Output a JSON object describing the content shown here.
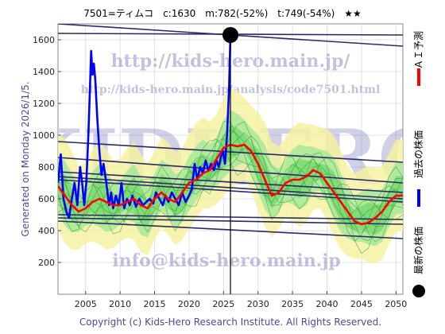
{
  "header": {
    "title": "7501=ティムコ　c:1630　m:782(-52%)　t:749(-54%)　★★"
  },
  "side_text": "Generated on Monday 2026/1/5.",
  "footer": "Copyright (c) Kids-Hero Research Institute. All Rights Reserved.",
  "watermarks": {
    "url": "http://kids-hero.main.jp/",
    "analysis_url": "http://kids-hero.main.jp/analysis/code7501.html",
    "big": "KIDHERO",
    "email": "info@kids-hero.main.jp"
  },
  "legend": [
    {
      "label": "ＡＩ予測",
      "color": "#ff0000",
      "kind": "line"
    },
    {
      "label": "過去の株価",
      "color": "#0000ff",
      "kind": "line"
    },
    {
      "label": "最新の株価",
      "color": "#000000",
      "kind": "dot"
    }
  ],
  "chart_data": {
    "type": "line",
    "title": "7501=ティムコ　c:1630　m:782(-52%)　t:749(-54%)　★★",
    "xlim": [
      2001,
      2051
    ],
    "ylim": [
      0,
      1700
    ],
    "xticks": [
      2005,
      2010,
      2015,
      2020,
      2025,
      2030,
      2035,
      2040,
      2045,
      2050
    ],
    "yticks": [
      200,
      400,
      600,
      800,
      1000,
      1200,
      1400,
      1600
    ],
    "grid": true,
    "latest": {
      "x": 2026.0,
      "y": 1630
    },
    "series": [
      {
        "name": "過去の株価",
        "color": "#0000ff",
        "points": [
          [
            2001.0,
            700
          ],
          [
            2001.4,
            880
          ],
          [
            2001.8,
            600
          ],
          [
            2002.2,
            520
          ],
          [
            2002.6,
            480
          ],
          [
            2003.0,
            600
          ],
          [
            2003.4,
            700
          ],
          [
            2003.8,
            560
          ],
          [
            2004.2,
            800
          ],
          [
            2004.5,
            700
          ],
          [
            2004.8,
            560
          ],
          [
            2005.1,
            700
          ],
          [
            2005.4,
            1000
          ],
          [
            2005.6,
            1250
          ],
          [
            2005.8,
            1530
          ],
          [
            2006.0,
            1380
          ],
          [
            2006.2,
            1450
          ],
          [
            2006.4,
            1350
          ],
          [
            2006.7,
            1100
          ],
          [
            2007.0,
            900
          ],
          [
            2007.3,
            750
          ],
          [
            2007.6,
            820
          ],
          [
            2008.0,
            700
          ],
          [
            2008.4,
            560
          ],
          [
            2008.7,
            640
          ],
          [
            2009.0,
            540
          ],
          [
            2009.4,
            620
          ],
          [
            2009.8,
            560
          ],
          [
            2010.2,
            700
          ],
          [
            2010.6,
            540
          ],
          [
            2011.0,
            600
          ],
          [
            2011.4,
            560
          ],
          [
            2011.8,
            620
          ],
          [
            2012.3,
            550
          ],
          [
            2012.8,
            600
          ],
          [
            2013.3,
            560
          ],
          [
            2013.8,
            580
          ],
          [
            2014.3,
            600
          ],
          [
            2014.8,
            570
          ],
          [
            2015.2,
            640
          ],
          [
            2015.7,
            600
          ],
          [
            2016.2,
            560
          ],
          [
            2016.6,
            620
          ],
          [
            2017.0,
            580
          ],
          [
            2017.5,
            640
          ],
          [
            2018.0,
            600
          ],
          [
            2018.5,
            560
          ],
          [
            2019.0,
            640
          ],
          [
            2019.5,
            580
          ],
          [
            2020.0,
            620
          ],
          [
            2020.4,
            660
          ],
          [
            2020.8,
            820
          ],
          [
            2021.2,
            720
          ],
          [
            2021.6,
            800
          ],
          [
            2022.0,
            760
          ],
          [
            2022.4,
            840
          ],
          [
            2022.8,
            780
          ],
          [
            2023.2,
            820
          ],
          [
            2023.6,
            780
          ],
          [
            2024.0,
            840
          ],
          [
            2024.3,
            800
          ],
          [
            2024.6,
            860
          ],
          [
            2024.9,
            900
          ],
          [
            2025.2,
            820
          ],
          [
            2025.5,
            1000
          ],
          [
            2025.8,
            1300
          ],
          [
            2026.0,
            1630
          ]
        ]
      },
      {
        "name": "ＡＩ予測",
        "color": "#ff0000",
        "points": [
          [
            2001.0,
            680
          ],
          [
            2002.0,
            620
          ],
          [
            2003.0,
            560
          ],
          [
            2004.0,
            520
          ],
          [
            2005.0,
            540
          ],
          [
            2006.0,
            580
          ],
          [
            2007.0,
            600
          ],
          [
            2008.0,
            580
          ],
          [
            2009.0,
            560
          ],
          [
            2010.0,
            560
          ],
          [
            2011.0,
            580
          ],
          [
            2012.0,
            600
          ],
          [
            2013.0,
            560
          ],
          [
            2014.0,
            540
          ],
          [
            2015.0,
            600
          ],
          [
            2016.0,
            640
          ],
          [
            2017.0,
            600
          ],
          [
            2018.0,
            580
          ],
          [
            2019.0,
            640
          ],
          [
            2020.0,
            700
          ],
          [
            2021.0,
            720
          ],
          [
            2022.0,
            760
          ],
          [
            2023.0,
            780
          ],
          [
            2024.0,
            850
          ],
          [
            2025.0,
            920
          ],
          [
            2026.0,
            940
          ],
          [
            2027.0,
            930
          ],
          [
            2028.0,
            940
          ],
          [
            2029.0,
            900
          ],
          [
            2030.0,
            820
          ],
          [
            2031.0,
            720
          ],
          [
            2032.0,
            620
          ],
          [
            2033.0,
            640
          ],
          [
            2034.0,
            700
          ],
          [
            2035.0,
            720
          ],
          [
            2036.0,
            720
          ],
          [
            2037.0,
            740
          ],
          [
            2038.0,
            780
          ],
          [
            2039.0,
            760
          ],
          [
            2040.0,
            700
          ],
          [
            2041.0,
            640
          ],
          [
            2042.0,
            580
          ],
          [
            2043.0,
            520
          ],
          [
            2044.0,
            460
          ],
          [
            2045.0,
            440
          ],
          [
            2046.0,
            450
          ],
          [
            2047.0,
            480
          ],
          [
            2048.0,
            520
          ],
          [
            2049.0,
            580
          ],
          [
            2050.0,
            620
          ],
          [
            2051.0,
            620
          ]
        ]
      }
    ],
    "trendlines": [
      [
        [
          2001,
          1700
        ],
        [
          2051,
          1560
        ]
      ],
      [
        [
          2001,
          1640
        ],
        [
          2051,
          1630
        ]
      ],
      [
        [
          2001,
          960
        ],
        [
          2051,
          830
        ]
      ],
      [
        [
          2001,
          860
        ],
        [
          2051,
          700
        ]
      ],
      [
        [
          2001,
          770
        ],
        [
          2051,
          640
        ]
      ],
      [
        [
          2001,
          740
        ],
        [
          2051,
          600
        ]
      ],
      [
        [
          2001,
          720
        ],
        [
          2051,
          580
        ]
      ],
      [
        [
          2001,
          500
        ],
        [
          2051,
          470
        ]
      ],
      [
        [
          2001,
          480
        ],
        [
          2051,
          440
        ]
      ],
      [
        [
          2001,
          460
        ],
        [
          2051,
          350
        ]
      ]
    ]
  }
}
